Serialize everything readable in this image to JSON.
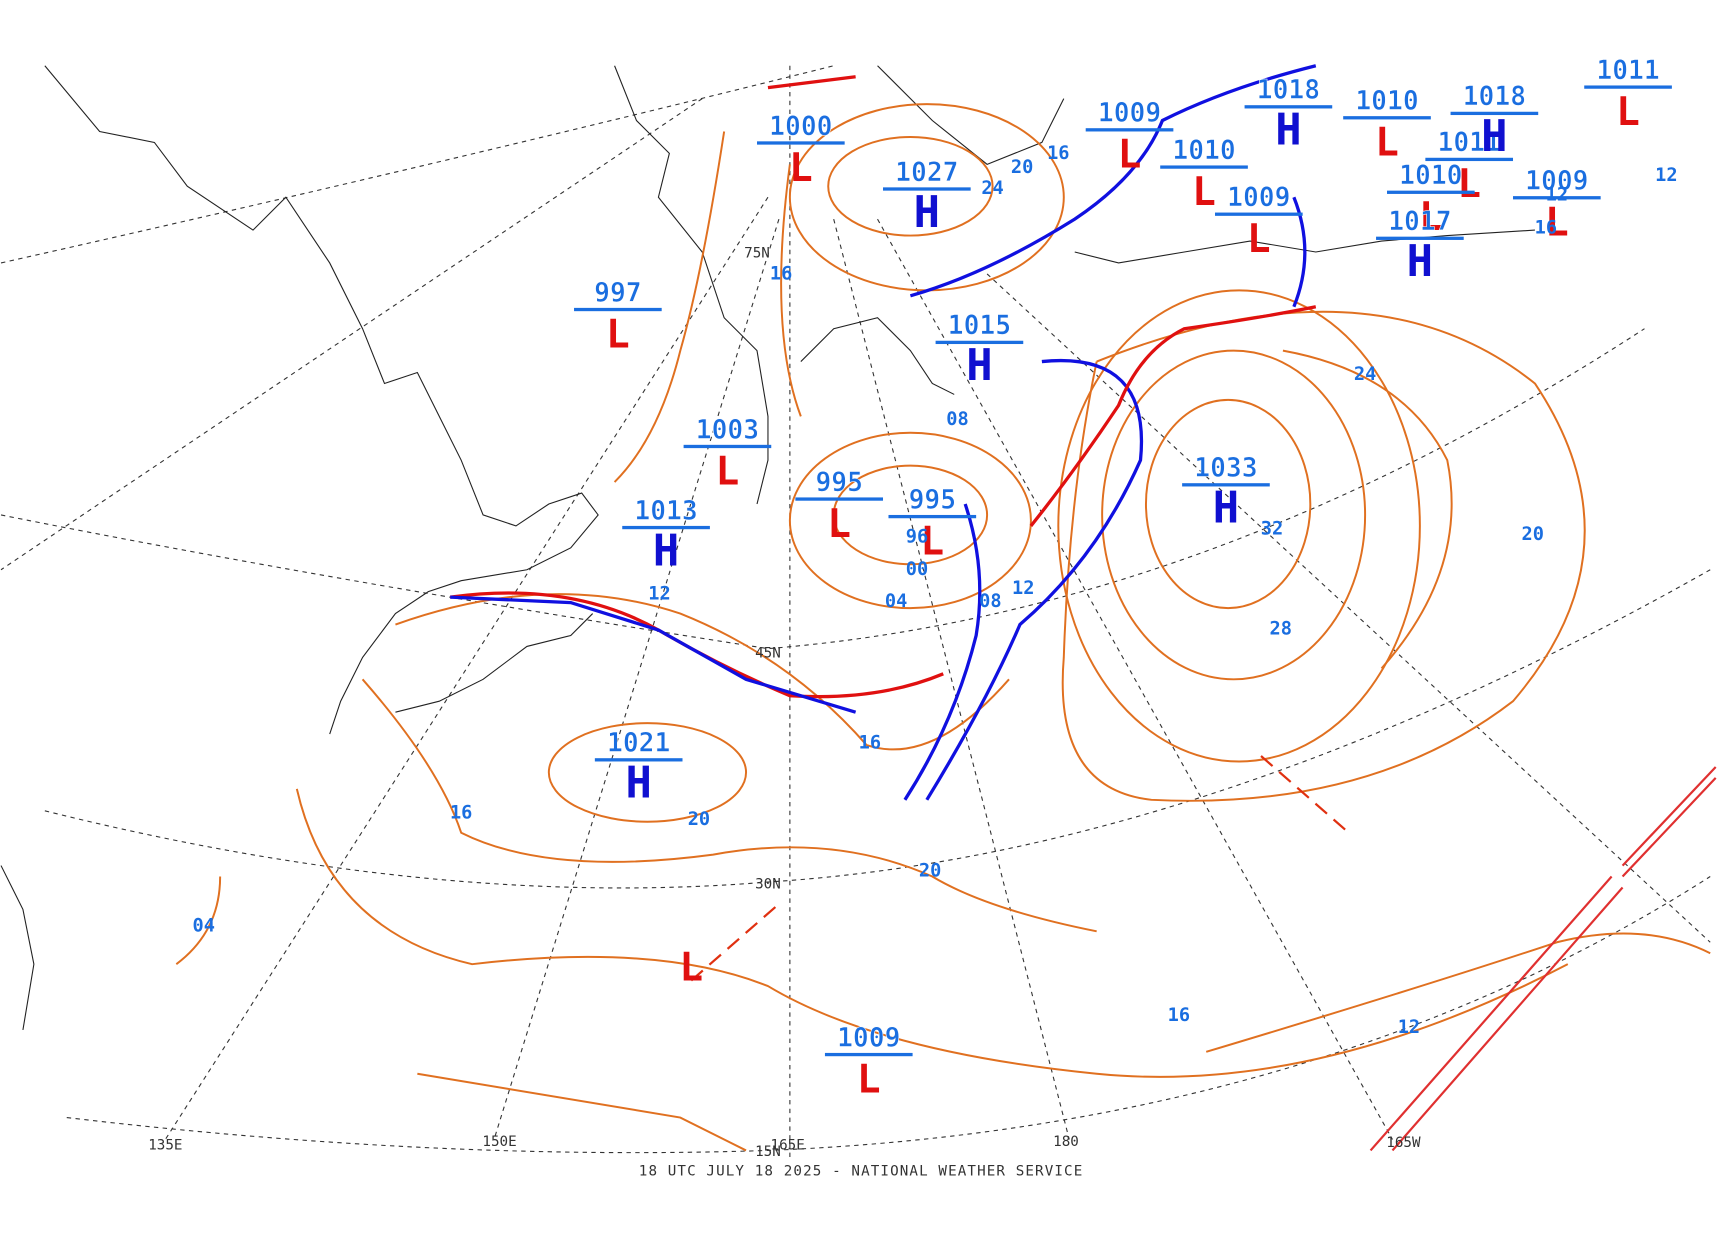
{
  "centers": [
    {
      "symbol": "H",
      "pressure": "1027"
    },
    {
      "symbol": "H",
      "pressure": "1013"
    },
    {
      "symbol": "H",
      "pressure": "1021"
    },
    {
      "symbol": "H",
      "pressure": "1033"
    },
    {
      "symbol": "H",
      "pressure": "1015"
    },
    {
      "symbol": "L",
      "pressure": "997"
    },
    {
      "symbol": "L",
      "pressure": "1003"
    },
    {
      "symbol": "L",
      "pressure": "995"
    },
    {
      "symbol": "L",
      "pressure": "995"
    },
    {
      "symbol": "L",
      "pressure": "1009"
    },
    {
      "symbol": "L",
      "pressure": "1000"
    },
    {
      "symbol": "L",
      "pressure": "1009"
    },
    {
      "symbol": "L",
      "pressure": "1010"
    },
    {
      "symbol": "L",
      "pressure": "1009"
    },
    {
      "symbol": "H",
      "pressure": "1018"
    },
    {
      "symbol": "L",
      "pressure": "1010"
    },
    {
      "symbol": "L",
      "pressure": "1011"
    },
    {
      "symbol": "L",
      "pressure": "1010"
    },
    {
      "symbol": "L",
      "pressure": "1009"
    },
    {
      "symbol": "H",
      "pressure": "1018"
    },
    {
      "symbol": "H",
      "pressure": "1017"
    },
    {
      "symbol": "L",
      "pressure": "1011"
    },
    {
      "symbol": "L",
      "pressure": ""
    }
  ],
  "isobar_labels": [
    "16",
    "20",
    "24",
    "16",
    "08",
    "04",
    "00",
    "96",
    "12",
    "16",
    "16",
    "20",
    "04",
    "20",
    "16",
    "12",
    "08",
    "12",
    "24",
    "32",
    "28",
    "20",
    "12",
    "16",
    "12"
  ],
  "graticule_labels": [
    "75N",
    "45N",
    "30N",
    "15N",
    "135E",
    "150E",
    "165E",
    "180",
    "165W"
  ],
  "footer": "18 UTC JULY 18 2025 - NATIONAL WEATHER SERVICE"
}
